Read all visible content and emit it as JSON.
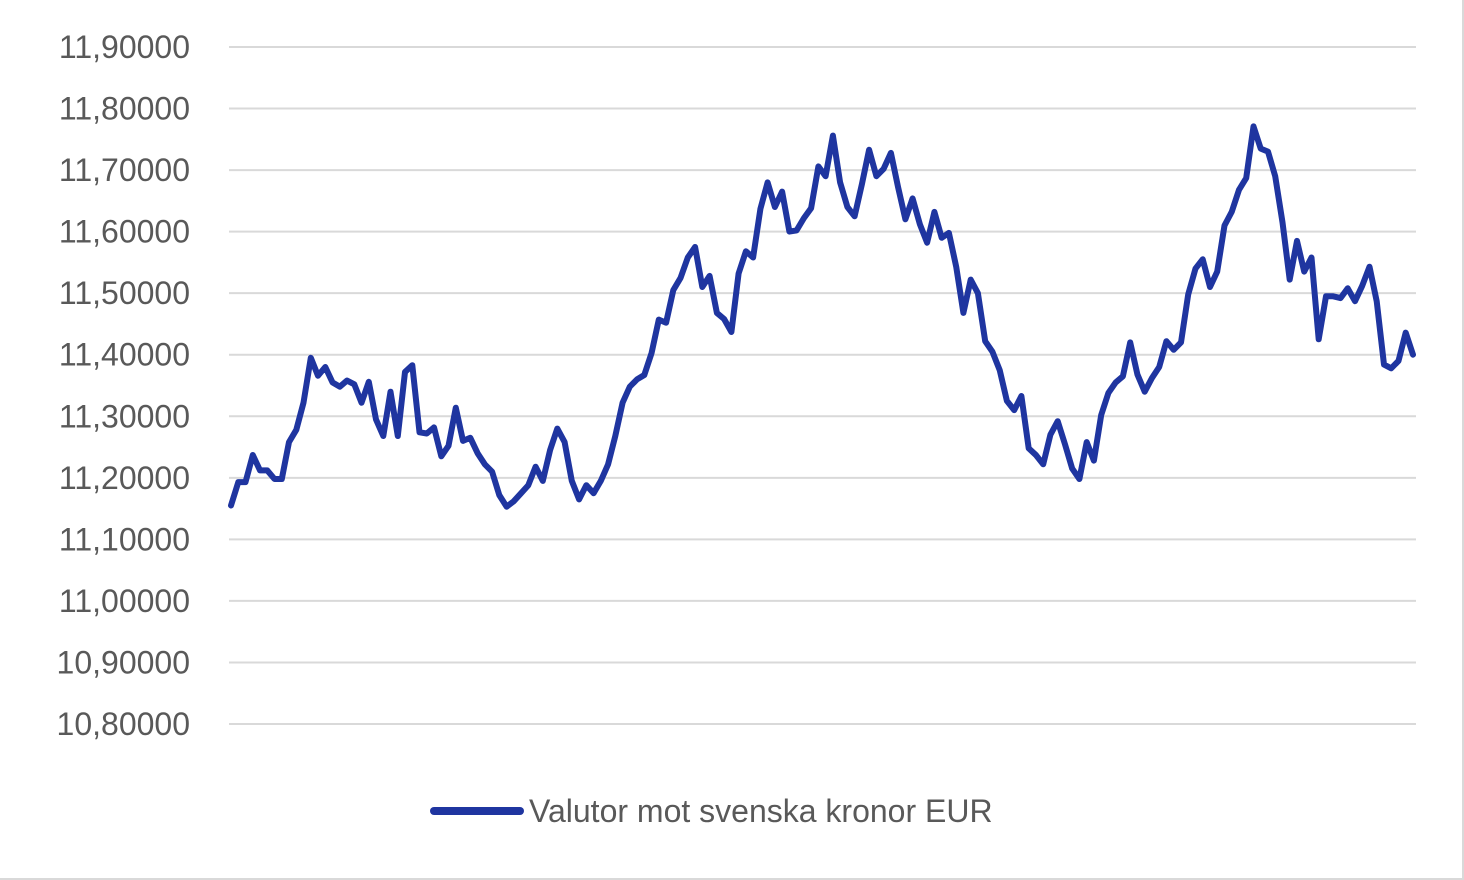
{
  "chart_data": {
    "type": "line",
    "title": "",
    "xlabel": "",
    "ylabel": "",
    "ylim": [
      10.8,
      11.9
    ],
    "y_ticks": [
      11.9,
      11.8,
      11.7,
      11.6,
      11.5,
      11.4,
      11.3,
      11.2,
      11.1,
      11.0,
      10.9,
      10.8
    ],
    "y_tick_labels": [
      "11,90000",
      "11,80000",
      "11,70000",
      "11,60000",
      "11,50000",
      "11,40000",
      "11,30000",
      "11,20000",
      "11,10000",
      "11,00000",
      "10,90000",
      "10,80000"
    ],
    "grid": true,
    "legend_position": "bottom",
    "series": [
      {
        "name": "Valutor mot svenska kronor EUR",
        "color": "#1f35a0",
        "values": [
          11.155,
          11.193,
          11.193,
          11.237,
          11.212,
          11.212,
          11.198,
          11.198,
          11.258,
          11.278,
          11.322,
          11.395,
          11.366,
          11.38,
          11.355,
          11.348,
          11.358,
          11.352,
          11.322,
          11.356,
          11.295,
          11.268,
          11.34,
          11.268,
          11.372,
          11.383,
          11.274,
          11.272,
          11.282,
          11.235,
          11.252,
          11.314,
          11.26,
          11.265,
          11.24,
          11.222,
          11.21,
          11.172,
          11.153,
          11.162,
          11.175,
          11.188,
          11.218,
          11.195,
          11.245,
          11.28,
          11.258,
          11.195,
          11.165,
          11.188,
          11.175,
          11.195,
          11.222,
          11.268,
          11.322,
          11.348,
          11.36,
          11.367,
          11.403,
          11.457,
          11.452,
          11.505,
          11.525,
          11.558,
          11.575,
          11.51,
          11.528,
          11.468,
          11.458,
          11.437,
          11.532,
          11.568,
          11.558,
          11.637,
          11.68,
          11.64,
          11.665,
          11.6,
          11.602,
          11.622,
          11.638,
          11.706,
          11.69,
          11.756,
          11.68,
          11.64,
          11.625,
          11.677,
          11.733,
          11.69,
          11.702,
          11.728,
          11.672,
          11.62,
          11.654,
          11.612,
          11.582,
          11.632,
          11.59,
          11.598,
          11.543,
          11.468,
          11.522,
          11.5,
          11.422,
          11.405,
          11.375,
          11.325,
          11.31,
          11.333,
          11.248,
          11.237,
          11.222,
          11.27,
          11.292,
          11.255,
          11.215,
          11.198,
          11.258,
          11.228,
          11.302,
          11.338,
          11.355,
          11.365,
          11.42,
          11.368,
          11.34,
          11.362,
          11.38,
          11.422,
          11.408,
          11.42,
          11.498,
          11.54,
          11.555,
          11.51,
          11.535,
          11.61,
          11.632,
          11.668,
          11.687,
          11.771,
          11.735,
          11.73,
          11.69,
          11.615,
          11.522,
          11.585,
          11.535,
          11.558,
          11.425,
          11.495,
          11.495,
          11.492,
          11.508,
          11.487,
          11.512,
          11.543,
          11.487,
          11.384,
          11.378,
          11.39,
          11.436,
          11.4
        ]
      }
    ]
  }
}
